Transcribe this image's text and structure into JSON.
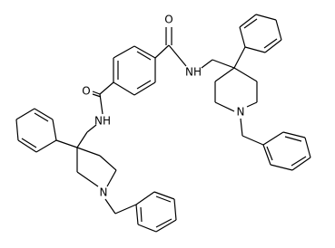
{
  "atoms": [
    {
      "label": "O"
    },
    {
      "label": "O"
    },
    {
      "label": "NH"
    },
    {
      "label": "NH"
    },
    {
      "label": "N"
    },
    {
      "label": "N"
    }
  ]
}
